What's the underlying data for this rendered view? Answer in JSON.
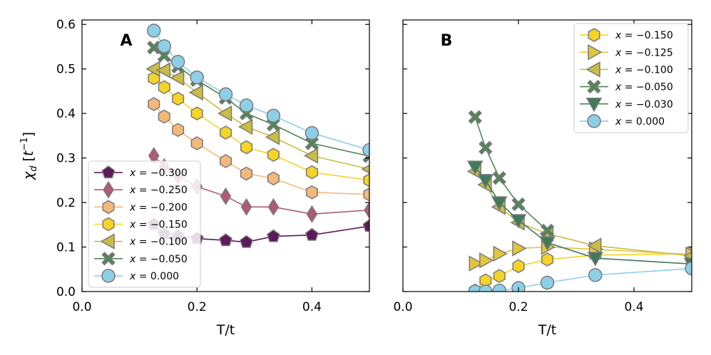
{
  "chart_data": [
    {
      "panel_label": "A",
      "type": "line",
      "xlabel": "T/t",
      "ylabel": "χ_d [t^{-1}]",
      "ylabel_parts": {
        "main": "χ",
        "sub": "d",
        "bracket_open": " [",
        "base": "t",
        "sup": "−1",
        "bracket_close": "]"
      },
      "xlim": [
        0.0,
        0.5
      ],
      "ylim": [
        0.0,
        0.61
      ],
      "xticks": [
        0.0,
        0.2,
        0.4
      ],
      "xtick_labels": [
        "0.0",
        "0.2",
        "0.4"
      ],
      "yticks": [
        0.0,
        0.1,
        0.2,
        0.3,
        0.4,
        0.5,
        0.6
      ],
      "ytick_labels": [
        "0.0",
        "0.1",
        "0.2",
        "0.3",
        "0.4",
        "0.5",
        "0.6"
      ],
      "legend_position": "lower-left",
      "grid": false,
      "series": [
        {
          "name": "x = −0.300",
          "label_prefix": "x = ",
          "label_value": "−0.300",
          "color": "#5b1a5b",
          "marker": "pentagon",
          "x": [
            0.125,
            0.143,
            0.167,
            0.2,
            0.25,
            0.286,
            0.333,
            0.4,
            0.5
          ],
          "y": [
            0.151,
            0.13,
            0.125,
            0.119,
            0.115,
            0.111,
            0.124,
            0.127,
            0.147
          ]
        },
        {
          "name": "x = −0.250",
          "label_prefix": "x = ",
          "label_value": "−0.250",
          "color": "#b05a78",
          "marker": "diamond",
          "x": [
            0.125,
            0.143,
            0.167,
            0.2,
            0.25,
            0.286,
            0.333,
            0.4,
            0.5
          ],
          "y": [
            0.305,
            0.28,
            0.26,
            0.236,
            0.214,
            0.19,
            0.19,
            0.174,
            0.183
          ]
        },
        {
          "name": "x = −0.200",
          "label_prefix": "x = ",
          "label_value": "−0.200",
          "color": "#f4b87a",
          "marker": "hexagon",
          "x": [
            0.125,
            0.143,
            0.167,
            0.2,
            0.25,
            0.286,
            0.333,
            0.4,
            0.5
          ],
          "y": [
            0.421,
            0.393,
            0.363,
            0.333,
            0.293,
            0.265,
            0.254,
            0.223,
            0.218
          ]
        },
        {
          "name": "x = −0.150",
          "label_prefix": "x = ",
          "label_value": "−0.150",
          "color": "#f5d327",
          "marker": "hexagon",
          "x": [
            0.125,
            0.143,
            0.167,
            0.2,
            0.25,
            0.286,
            0.333,
            0.4,
            0.5
          ],
          "y": [
            0.479,
            0.459,
            0.433,
            0.4,
            0.357,
            0.324,
            0.307,
            0.268,
            0.25
          ]
        },
        {
          "name": "x = −0.100",
          "label_prefix": "x = ",
          "label_value": "−0.100",
          "color": "#c9bd45",
          "marker": "triangle-left",
          "x": [
            0.125,
            0.143,
            0.167,
            0.2,
            0.25,
            0.286,
            0.333,
            0.4,
            0.5
          ],
          "y": [
            0.5,
            0.497,
            0.48,
            0.447,
            0.4,
            0.37,
            0.347,
            0.305,
            0.275
          ]
        },
        {
          "name": "x = −0.050",
          "label_prefix": "x = ",
          "label_value": "−0.050",
          "color": "#4e8754",
          "marker": "x",
          "x": [
            0.125,
            0.143,
            0.167,
            0.2,
            0.25,
            0.286,
            0.333,
            0.4,
            0.5
          ],
          "y": [
            0.548,
            0.53,
            0.505,
            0.475,
            0.435,
            0.4,
            0.375,
            0.333,
            0.304
          ]
        },
        {
          "name": "x = 0.000",
          "label_prefix": "x = ",
          "label_value": "0.000",
          "color": "#8ecfe8",
          "marker": "circle",
          "x": [
            0.125,
            0.143,
            0.167,
            0.2,
            0.25,
            0.286,
            0.333,
            0.4,
            0.5
          ],
          "y": [
            0.586,
            0.551,
            0.516,
            0.481,
            0.443,
            0.418,
            0.395,
            0.356,
            0.318
          ]
        }
      ]
    },
    {
      "panel_label": "B",
      "type": "line",
      "xlabel": "T/t",
      "ylabel": "",
      "xlim": [
        0.0,
        0.5
      ],
      "ylim": [
        0.0,
        0.61
      ],
      "xticks": [
        0.0,
        0.2,
        0.4
      ],
      "xtick_labels": [
        "0.0",
        "0.2",
        "0.4"
      ],
      "yticks": [
        0.0,
        0.1,
        0.2,
        0.3,
        0.4,
        0.5,
        0.6
      ],
      "ytick_labels": [],
      "legend_position": "top-right",
      "grid": false,
      "series": [
        {
          "name": "x = −0.150",
          "label_prefix": "x = ",
          "label_value": "−0.150",
          "color": "#f5d327",
          "marker": "hexagon",
          "x": [
            0.125,
            0.143,
            0.167,
            0.2,
            0.25,
            0.333,
            0.5
          ],
          "y": [
            0.002,
            0.025,
            0.035,
            0.057,
            0.072,
            0.082,
            0.085
          ]
        },
        {
          "name": "x = −0.125",
          "label_prefix": "x = ",
          "label_value": "−0.125",
          "color": "#e0c640",
          "marker": "triangle-right",
          "x": [
            0.125,
            0.143,
            0.167,
            0.2,
            0.25,
            0.333,
            0.5
          ],
          "y": [
            0.063,
            0.07,
            0.085,
            0.097,
            0.1,
            0.095,
            0.083
          ]
        },
        {
          "name": "x = −0.100",
          "label_prefix": "x = ",
          "label_value": "−0.100",
          "color": "#c9bd45",
          "marker": "triangle-left",
          "x": [
            0.125,
            0.143,
            0.167,
            0.2,
            0.25,
            0.333,
            0.5
          ],
          "y": [
            0.27,
            0.24,
            0.19,
            0.155,
            0.13,
            0.103,
            0.08
          ]
        },
        {
          "name": "x = −0.050",
          "label_prefix": "x = ",
          "label_value": "−0.050",
          "color": "#4e8754",
          "marker": "x",
          "x": [
            0.125,
            0.143,
            0.167,
            0.2,
            0.25
          ],
          "y": [
            0.392,
            0.323,
            0.255,
            0.196,
            0.137
          ]
        },
        {
          "name": "x = −0.030",
          "label_prefix": "x = ",
          "label_value": "−0.030",
          "color": "#3f7a5a",
          "marker": "triangle-down",
          "x": [
            0.125,
            0.143,
            0.167,
            0.2,
            0.25,
            0.333,
            0.5
          ],
          "y": [
            0.28,
            0.25,
            0.2,
            0.16,
            0.11,
            0.075,
            0.062
          ]
        },
        {
          "name": "x = 0.000",
          "label_prefix": "x = ",
          "label_value": "0.000",
          "color": "#8ecfe8",
          "marker": "circle",
          "x": [
            0.125,
            0.143,
            0.167,
            0.2,
            0.25,
            0.333,
            0.5
          ],
          "y": [
            0.0,
            0.0,
            0.002,
            0.008,
            0.02,
            0.037,
            0.052
          ]
        }
      ]
    }
  ]
}
